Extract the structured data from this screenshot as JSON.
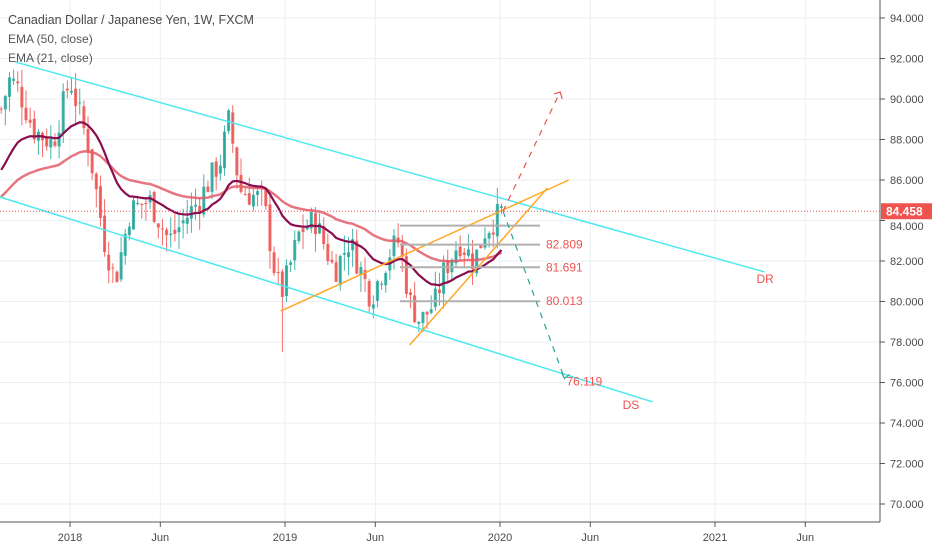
{
  "header": {
    "title": "Canadian Dollar / Japanese Yen, 1W, FXCM",
    "indicators": [
      "EMA (50, close)",
      "EMA (21, close)"
    ]
  },
  "chart_data": {
    "type": "candlestick",
    "symbol": "CADJPY",
    "interval": "1W",
    "ylim": [
      69.2,
      95
    ],
    "y_ticks": [
      "70.000",
      "72.000",
      "74.000",
      "76.000",
      "78.000",
      "80.000",
      "82.000",
      "84.000",
      "86.000",
      "88.000",
      "90.000",
      "92.000",
      "94.000"
    ],
    "x_ticks": [
      {
        "label": "2018",
        "t": 2018.0
      },
      {
        "label": "Jun",
        "t": 2018.42
      },
      {
        "label": "2019",
        "t": 2019.0
      },
      {
        "label": "Jun",
        "t": 2019.42
      },
      {
        "label": "2020",
        "t": 2020.0
      },
      {
        "label": "Jun",
        "t": 2020.42
      },
      {
        "label": "2021",
        "t": 2021.0
      },
      {
        "label": "Jun",
        "t": 2021.42
      }
    ],
    "xlim": [
      2017.674,
      2022.09
    ],
    "price_path": [
      [
        2017.68,
        89.5
      ],
      [
        2017.72,
        91
      ],
      [
        2017.76,
        90.5
      ],
      [
        2017.83,
        88.5
      ],
      [
        2017.92,
        87.8
      ],
      [
        2018.0,
        91
      ],
      [
        2018.09,
        87.5
      ],
      [
        2018.16,
        83
      ],
      [
        2018.21,
        81
      ],
      [
        2018.28,
        84.5
      ],
      [
        2018.37,
        85
      ],
      [
        2018.46,
        83
      ],
      [
        2018.6,
        85
      ],
      [
        2018.7,
        87
      ],
      [
        2018.74,
        89
      ],
      [
        2018.79,
        85.5
      ],
      [
        2018.9,
        85
      ],
      [
        2018.96,
        81
      ],
      [
        2018.99,
        80.5
      ],
      [
        2019.07,
        83.5
      ],
      [
        2019.14,
        84
      ],
      [
        2019.23,
        81.5
      ],
      [
        2019.3,
        83
      ],
      [
        2019.4,
        80.2
      ],
      [
        2019.49,
        82.5
      ],
      [
        2019.53,
        83
      ],
      [
        2019.58,
        80
      ],
      [
        2019.63,
        79
      ],
      [
        2019.7,
        80
      ],
      [
        2019.74,
        81.5
      ],
      [
        2019.81,
        83
      ],
      [
        2019.88,
        82
      ],
      [
        2019.93,
        83.5
      ],
      [
        2020.01,
        84.45
      ]
    ],
    "ema_seed": {
      "ema21": 86.2,
      "ema50": 85.0
    },
    "current_price": "84.458",
    "ema_colors": {
      "ema21": "#880e4f",
      "ema50": "#e35d6a"
    },
    "candle_colors": {
      "up": "#26a69a",
      "down": "#ef5350"
    },
    "drawings": {
      "channel_upper": {
        "label": "DR",
        "from": [
          2017.745,
          91.83
        ],
        "to": [
          2021.23,
          81.46
        ]
      },
      "channel_lower": {
        "label": "DS",
        "from": [
          2017.674,
          85.16
        ],
        "to": [
          2020.71,
          75.04
        ]
      },
      "wedge_upper": {
        "from": [
          2018.98,
          79.53
        ],
        "to": [
          2020.32,
          86.0
        ]
      },
      "wedge_lower": {
        "from": [
          2019.58,
          77.85
        ],
        "to": [
          2020.22,
          85.6
        ]
      },
      "levels": [
        {
          "price": 83.75,
          "label": ""
        },
        {
          "price": 82.809,
          "label": "82.809"
        },
        {
          "price": 81.691,
          "label": "81.691"
        },
        {
          "price": 80.013,
          "label": "80.013"
        }
      ],
      "bull_projection": {
        "from": [
          2020.014,
          84.458
        ],
        "to": [
          2020.28,
          90.35
        ]
      },
      "bear_projection": {
        "from": [
          2020.014,
          84.458
        ],
        "to": [
          2020.3,
          76.2
        ],
        "label": "76.119"
      }
    }
  }
}
